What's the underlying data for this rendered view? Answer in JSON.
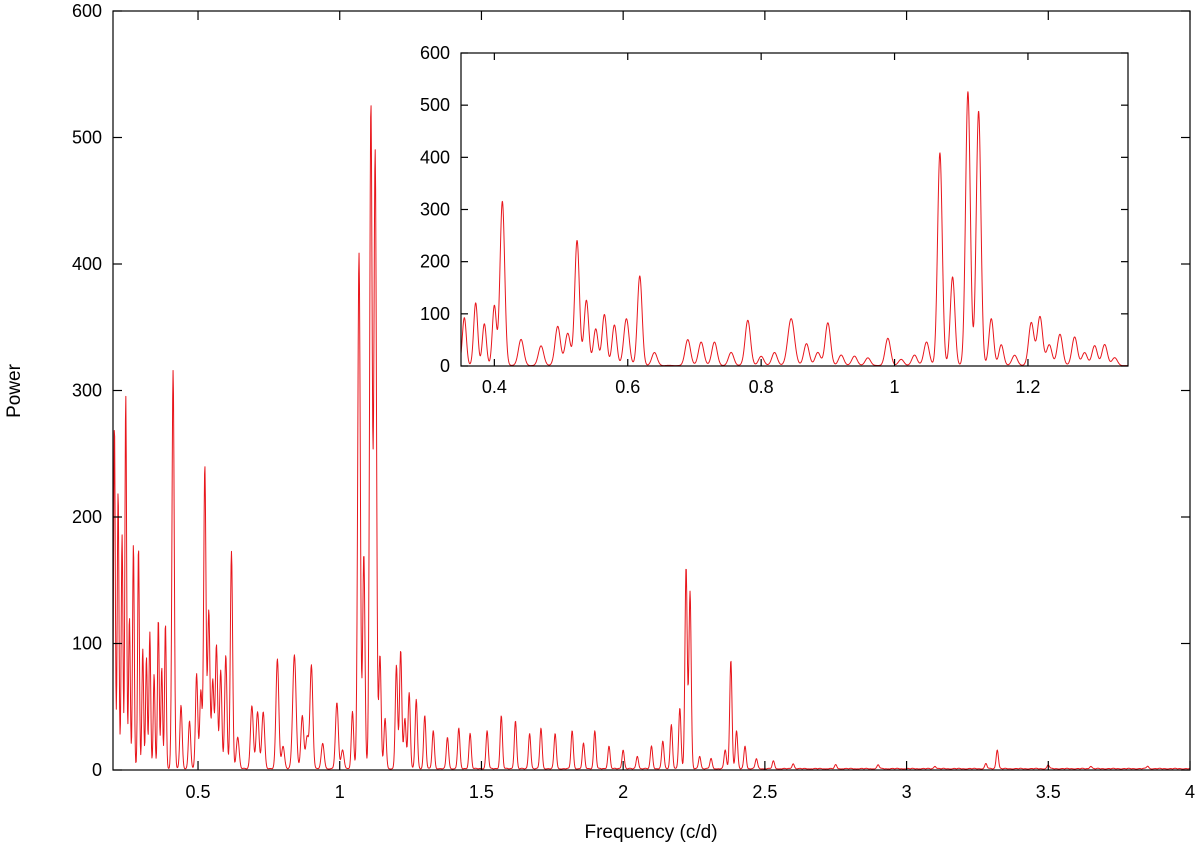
{
  "chart_data": [
    {
      "id": "main",
      "type": "line",
      "xlabel": "Frequency (c/d)",
      "ylabel": "Power",
      "xlim": [
        0.2,
        4.0
      ],
      "ylim": [
        0,
        600
      ],
      "xticks": [
        0.5,
        1,
        1.5,
        2,
        2.5,
        3,
        3.5,
        4
      ],
      "xtick_labels": [
        "0.5",
        "1",
        "1.5",
        "2",
        "2.5",
        "3",
        "3.5",
        "4"
      ],
      "yticks": [
        0,
        100,
        200,
        300,
        400,
        500,
        600
      ],
      "ytick_labels": [
        "0",
        "100",
        "200",
        "300",
        "400",
        "500",
        "600"
      ],
      "grid": false,
      "line_color": "#e8161c",
      "peaks": [
        {
          "x": 0.205,
          "y": 273,
          "w": 0.003
        },
        {
          "x": 0.218,
          "y": 220,
          "w": 0.003
        },
        {
          "x": 0.232,
          "y": 185,
          "w": 0.003
        },
        {
          "x": 0.245,
          "y": 296,
          "w": 0.003
        },
        {
          "x": 0.258,
          "y": 120,
          "w": 0.003
        },
        {
          "x": 0.272,
          "y": 178,
          "w": 0.003
        },
        {
          "x": 0.29,
          "y": 176,
          "w": 0.003
        },
        {
          "x": 0.305,
          "y": 95,
          "w": 0.003
        },
        {
          "x": 0.318,
          "y": 88,
          "w": 0.003
        },
        {
          "x": 0.33,
          "y": 108,
          "w": 0.003
        },
        {
          "x": 0.345,
          "y": 75,
          "w": 0.003
        },
        {
          "x": 0.36,
          "y": 119,
          "w": 0.003
        },
        {
          "x": 0.372,
          "y": 80,
          "w": 0.003
        },
        {
          "x": 0.385,
          "y": 115,
          "w": 0.003
        },
        {
          "x": 0.412,
          "y": 315,
          "w": 0.004
        },
        {
          "x": 0.44,
          "y": 50,
          "w": 0.004
        },
        {
          "x": 0.47,
          "y": 38,
          "w": 0.004
        },
        {
          "x": 0.495,
          "y": 75,
          "w": 0.004
        },
        {
          "x": 0.51,
          "y": 62,
          "w": 0.004
        },
        {
          "x": 0.524,
          "y": 240,
          "w": 0.004
        },
        {
          "x": 0.538,
          "y": 125,
          "w": 0.004
        },
        {
          "x": 0.552,
          "y": 70,
          "w": 0.004
        },
        {
          "x": 0.565,
          "y": 98,
          "w": 0.004
        },
        {
          "x": 0.58,
          "y": 78,
          "w": 0.004
        },
        {
          "x": 0.598,
          "y": 90,
          "w": 0.004
        },
        {
          "x": 0.618,
          "y": 172,
          "w": 0.004
        },
        {
          "x": 0.64,
          "y": 25,
          "w": 0.005
        },
        {
          "x": 0.69,
          "y": 50,
          "w": 0.005
        },
        {
          "x": 0.71,
          "y": 45,
          "w": 0.005
        },
        {
          "x": 0.73,
          "y": 45,
          "w": 0.005
        },
        {
          "x": 0.78,
          "y": 87,
          "w": 0.005
        },
        {
          "x": 0.8,
          "y": 18,
          "w": 0.005
        },
        {
          "x": 0.84,
          "y": 90,
          "w": 0.006
        },
        {
          "x": 0.868,
          "y": 42,
          "w": 0.005
        },
        {
          "x": 0.885,
          "y": 25,
          "w": 0.005
        },
        {
          "x": 0.9,
          "y": 82,
          "w": 0.005
        },
        {
          "x": 0.94,
          "y": 20,
          "w": 0.005
        },
        {
          "x": 0.99,
          "y": 52,
          "w": 0.005
        },
        {
          "x": 1.01,
          "y": 15,
          "w": 0.005
        },
        {
          "x": 1.045,
          "y": 45,
          "w": 0.004
        },
        {
          "x": 1.068,
          "y": 408,
          "w": 0.0045
        },
        {
          "x": 1.085,
          "y": 170,
          "w": 0.004
        },
        {
          "x": 1.11,
          "y": 525,
          "w": 0.0045
        },
        {
          "x": 1.125,
          "y": 488,
          "w": 0.0045
        },
        {
          "x": 1.142,
          "y": 90,
          "w": 0.004
        },
        {
          "x": 1.16,
          "y": 40,
          "w": 0.004
        },
        {
          "x": 1.2,
          "y": 82,
          "w": 0.004
        },
        {
          "x": 1.215,
          "y": 94,
          "w": 0.004
        },
        {
          "x": 1.23,
          "y": 40,
          "w": 0.004
        },
        {
          "x": 1.245,
          "y": 60,
          "w": 0.004
        },
        {
          "x": 1.27,
          "y": 55,
          "w": 0.004
        },
        {
          "x": 1.3,
          "y": 42,
          "w": 0.004
        },
        {
          "x": 1.33,
          "y": 30,
          "w": 0.004
        },
        {
          "x": 1.38,
          "y": 25,
          "w": 0.004
        },
        {
          "x": 1.42,
          "y": 32,
          "w": 0.004
        },
        {
          "x": 1.46,
          "y": 28,
          "w": 0.004
        },
        {
          "x": 1.52,
          "y": 30,
          "w": 0.004
        },
        {
          "x": 1.57,
          "y": 42,
          "w": 0.004
        },
        {
          "x": 1.62,
          "y": 38,
          "w": 0.004
        },
        {
          "x": 1.67,
          "y": 28,
          "w": 0.004
        },
        {
          "x": 1.71,
          "y": 32,
          "w": 0.004
        },
        {
          "x": 1.76,
          "y": 28,
          "w": 0.004
        },
        {
          "x": 1.82,
          "y": 30,
          "w": 0.004
        },
        {
          "x": 1.86,
          "y": 20,
          "w": 0.004
        },
        {
          "x": 1.9,
          "y": 30,
          "w": 0.004
        },
        {
          "x": 1.95,
          "y": 18,
          "w": 0.004
        },
        {
          "x": 2.0,
          "y": 15,
          "w": 0.004
        },
        {
          "x": 2.05,
          "y": 10,
          "w": 0.004
        },
        {
          "x": 2.1,
          "y": 18,
          "w": 0.004
        },
        {
          "x": 2.14,
          "y": 22,
          "w": 0.004
        },
        {
          "x": 2.17,
          "y": 35,
          "w": 0.004
        },
        {
          "x": 2.2,
          "y": 48,
          "w": 0.004
        },
        {
          "x": 2.222,
          "y": 160,
          "w": 0.004
        },
        {
          "x": 2.236,
          "y": 140,
          "w": 0.004
        },
        {
          "x": 2.27,
          "y": 10,
          "w": 0.004
        },
        {
          "x": 2.31,
          "y": 8,
          "w": 0.004
        },
        {
          "x": 2.36,
          "y": 15,
          "w": 0.004
        },
        {
          "x": 2.38,
          "y": 86,
          "w": 0.004
        },
        {
          "x": 2.4,
          "y": 30,
          "w": 0.004
        },
        {
          "x": 2.43,
          "y": 18,
          "w": 0.004
        },
        {
          "x": 2.47,
          "y": 8,
          "w": 0.004
        },
        {
          "x": 2.53,
          "y": 6,
          "w": 0.004
        },
        {
          "x": 2.6,
          "y": 4,
          "w": 0.004
        },
        {
          "x": 2.75,
          "y": 3,
          "w": 0.004
        },
        {
          "x": 2.9,
          "y": 3,
          "w": 0.004
        },
        {
          "x": 3.1,
          "y": 2,
          "w": 0.004
        },
        {
          "x": 3.28,
          "y": 4,
          "w": 0.004
        },
        {
          "x": 3.32,
          "y": 15,
          "w": 0.004
        },
        {
          "x": 3.5,
          "y": 3,
          "w": 0.004
        },
        {
          "x": 3.65,
          "y": 2,
          "w": 0.004
        },
        {
          "x": 3.85,
          "y": 2,
          "w": 0.004
        }
      ]
    },
    {
      "id": "inset",
      "type": "line",
      "xlabel": "",
      "ylabel": "",
      "xlim": [
        0.35,
        1.35
      ],
      "ylim": [
        0,
        600
      ],
      "xticks": [
        0.4,
        0.6,
        0.8,
        1,
        1.2
      ],
      "xtick_labels": [
        "0.4",
        "0.6",
        "0.8",
        "1",
        "1.2"
      ],
      "yticks": [
        0,
        100,
        200,
        300,
        400,
        500,
        600
      ],
      "ytick_labels": [
        "0",
        "100",
        "200",
        "300",
        "400",
        "500",
        "600"
      ],
      "grid": false,
      "line_color": "#e8161c",
      "peaks": [
        {
          "x": 0.355,
          "y": 92,
          "w": 0.003
        },
        {
          "x": 0.372,
          "y": 120,
          "w": 0.003
        },
        {
          "x": 0.385,
          "y": 80,
          "w": 0.003
        },
        {
          "x": 0.4,
          "y": 115,
          "w": 0.003
        },
        {
          "x": 0.412,
          "y": 315,
          "w": 0.0035
        },
        {
          "x": 0.44,
          "y": 50,
          "w": 0.004
        },
        {
          "x": 0.47,
          "y": 38,
          "w": 0.004
        },
        {
          "x": 0.495,
          "y": 75,
          "w": 0.004
        },
        {
          "x": 0.51,
          "y": 62,
          "w": 0.004
        },
        {
          "x": 0.524,
          "y": 240,
          "w": 0.0035
        },
        {
          "x": 0.538,
          "y": 125,
          "w": 0.0035
        },
        {
          "x": 0.552,
          "y": 70,
          "w": 0.0035
        },
        {
          "x": 0.565,
          "y": 98,
          "w": 0.0035
        },
        {
          "x": 0.58,
          "y": 78,
          "w": 0.0035
        },
        {
          "x": 0.598,
          "y": 90,
          "w": 0.004
        },
        {
          "x": 0.618,
          "y": 172,
          "w": 0.0035
        },
        {
          "x": 0.64,
          "y": 25,
          "w": 0.004
        },
        {
          "x": 0.69,
          "y": 50,
          "w": 0.004
        },
        {
          "x": 0.71,
          "y": 45,
          "w": 0.004
        },
        {
          "x": 0.73,
          "y": 45,
          "w": 0.004
        },
        {
          "x": 0.755,
          "y": 25,
          "w": 0.004
        },
        {
          "x": 0.78,
          "y": 87,
          "w": 0.004
        },
        {
          "x": 0.8,
          "y": 18,
          "w": 0.004
        },
        {
          "x": 0.82,
          "y": 25,
          "w": 0.004
        },
        {
          "x": 0.845,
          "y": 90,
          "w": 0.005
        },
        {
          "x": 0.868,
          "y": 42,
          "w": 0.004
        },
        {
          "x": 0.885,
          "y": 25,
          "w": 0.004
        },
        {
          "x": 0.9,
          "y": 82,
          "w": 0.004
        },
        {
          "x": 0.92,
          "y": 20,
          "w": 0.004
        },
        {
          "x": 0.94,
          "y": 18,
          "w": 0.004
        },
        {
          "x": 0.96,
          "y": 15,
          "w": 0.004
        },
        {
          "x": 0.99,
          "y": 52,
          "w": 0.004
        },
        {
          "x": 1.01,
          "y": 12,
          "w": 0.004
        },
        {
          "x": 1.03,
          "y": 20,
          "w": 0.004
        },
        {
          "x": 1.048,
          "y": 45,
          "w": 0.004
        },
        {
          "x": 1.068,
          "y": 408,
          "w": 0.0035
        },
        {
          "x": 1.087,
          "y": 170,
          "w": 0.0035
        },
        {
          "x": 1.11,
          "y": 525,
          "w": 0.0035
        },
        {
          "x": 1.126,
          "y": 488,
          "w": 0.0035
        },
        {
          "x": 1.145,
          "y": 90,
          "w": 0.0035
        },
        {
          "x": 1.16,
          "y": 40,
          "w": 0.0035
        },
        {
          "x": 1.18,
          "y": 20,
          "w": 0.004
        },
        {
          "x": 1.205,
          "y": 82,
          "w": 0.004
        },
        {
          "x": 1.218,
          "y": 94,
          "w": 0.004
        },
        {
          "x": 1.232,
          "y": 40,
          "w": 0.004
        },
        {
          "x": 1.248,
          "y": 60,
          "w": 0.004
        },
        {
          "x": 1.27,
          "y": 55,
          "w": 0.004
        },
        {
          "x": 1.285,
          "y": 25,
          "w": 0.004
        },
        {
          "x": 1.3,
          "y": 38,
          "w": 0.004
        },
        {
          "x": 1.315,
          "y": 40,
          "w": 0.004
        },
        {
          "x": 1.33,
          "y": 15,
          "w": 0.004
        }
      ]
    }
  ]
}
